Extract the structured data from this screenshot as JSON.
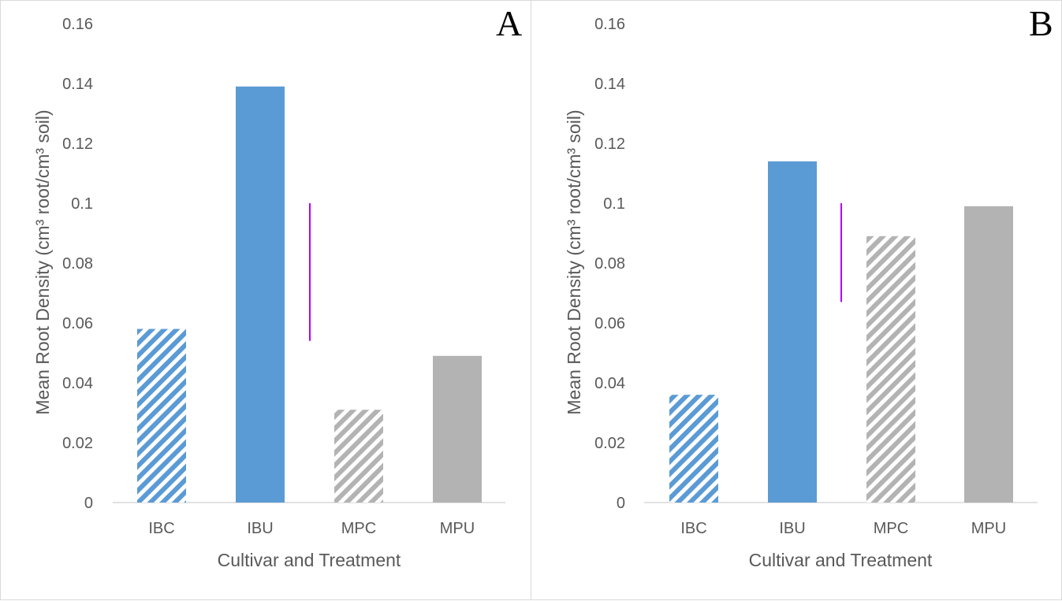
{
  "chart_data": [
    {
      "type": "bar",
      "panel": "A",
      "categories": [
        "IBC",
        "IBU",
        "MPC",
        "MPU"
      ],
      "values": [
        0.058,
        0.139,
        0.031,
        0.049
      ],
      "fills": [
        "hatched-blue",
        "solid-blue",
        "hatched-gray",
        "solid-gray"
      ],
      "xlabel": "Cultivar and Treatment",
      "ylabel": "Mean Root Density (cm³ root/cm³ soil)",
      "ylim": [
        0,
        0.16
      ],
      "yticks": [
        "0",
        "0.02",
        "0.04",
        "0.06",
        "0.08",
        "0.1",
        "0.12",
        "0.14",
        "0.16"
      ],
      "lsd_bar": {
        "from": 0.054,
        "to": 0.1
      },
      "grid": false
    },
    {
      "type": "bar",
      "panel": "B",
      "categories": [
        "IBC",
        "IBU",
        "MPC",
        "MPU"
      ],
      "values": [
        0.036,
        0.114,
        0.089,
        0.099
      ],
      "fills": [
        "hatched-blue",
        "solid-blue",
        "hatched-gray",
        "solid-gray"
      ],
      "xlabel": "Cultivar and Treatment",
      "ylabel": "Mean Root Density (cm³ root/cm³ soil)",
      "ylim": [
        0,
        0.16
      ],
      "yticks": [
        "0",
        "0.02",
        "0.04",
        "0.06",
        "0.08",
        "0.1",
        "0.12",
        "0.14",
        "0.16"
      ],
      "lsd_bar": {
        "from": 0.067,
        "to": 0.1
      },
      "grid": false
    }
  ],
  "colors": {
    "blue": "#5b9bd5",
    "gray": "#b3b3b3",
    "lsd": "#b300ff",
    "axis": "#d9d9d9"
  }
}
